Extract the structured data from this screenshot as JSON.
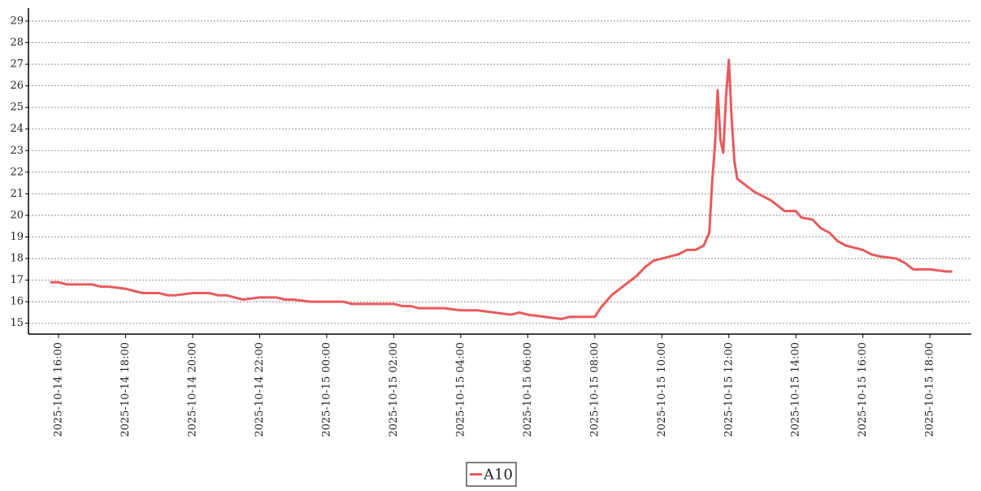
{
  "chart_data": {
    "type": "line",
    "x": [
      "2025-10-14 15:45",
      "2025-10-14 16:00",
      "2025-10-14 16:15",
      "2025-10-14 16:30",
      "2025-10-14 17:00",
      "2025-10-14 17:15",
      "2025-10-14 17:30",
      "2025-10-14 18:00",
      "2025-10-14 18:15",
      "2025-10-14 18:30",
      "2025-10-14 19:00",
      "2025-10-14 19:15",
      "2025-10-14 19:30",
      "2025-10-14 20:00",
      "2025-10-14 20:30",
      "2025-10-14 20:45",
      "2025-10-14 21:00",
      "2025-10-14 21:15",
      "2025-10-14 21:30",
      "2025-10-14 22:00",
      "2025-10-14 22:30",
      "2025-10-14 22:45",
      "2025-10-14 23:00",
      "2025-10-14 23:30",
      "2025-10-15 00:00",
      "2025-10-15 00:30",
      "2025-10-15 00:45",
      "2025-10-15 01:00",
      "2025-10-15 01:30",
      "2025-10-15 02:00",
      "2025-10-15 02:15",
      "2025-10-15 02:30",
      "2025-10-15 02:45",
      "2025-10-15 03:00",
      "2025-10-15 03:30",
      "2025-10-15 04:00",
      "2025-10-15 04:30",
      "2025-10-15 05:00",
      "2025-10-15 05:30",
      "2025-10-15 05:45",
      "2025-10-15 06:00",
      "2025-10-15 06:30",
      "2025-10-15 07:00",
      "2025-10-15 07:15",
      "2025-10-15 07:30",
      "2025-10-15 08:00",
      "2025-10-15 08:10",
      "2025-10-15 08:20",
      "2025-10-15 08:30",
      "2025-10-15 08:45",
      "2025-10-15 09:00",
      "2025-10-15 09:15",
      "2025-10-15 09:30",
      "2025-10-15 09:45",
      "2025-10-15 10:00",
      "2025-10-15 10:15",
      "2025-10-15 10:30",
      "2025-10-15 10:45",
      "2025-10-15 11:00",
      "2025-10-15 11:15",
      "2025-10-15 11:25",
      "2025-10-15 11:30",
      "2025-10-15 11:35",
      "2025-10-15 11:40",
      "2025-10-15 11:45",
      "2025-10-15 11:50",
      "2025-10-15 11:55",
      "2025-10-15 12:00",
      "2025-10-15 12:05",
      "2025-10-15 12:10",
      "2025-10-15 12:15",
      "2025-10-15 12:30",
      "2025-10-15 12:45",
      "2025-10-15 13:00",
      "2025-10-15 13:15",
      "2025-10-15 13:30",
      "2025-10-15 13:40",
      "2025-10-15 13:50",
      "2025-10-15 14:00",
      "2025-10-15 14:10",
      "2025-10-15 14:30",
      "2025-10-15 14:45",
      "2025-10-15 15:00",
      "2025-10-15 15:15",
      "2025-10-15 15:30",
      "2025-10-15 16:00",
      "2025-10-15 16:15",
      "2025-10-15 16:30",
      "2025-10-15 17:00",
      "2025-10-15 17:15",
      "2025-10-15 17:30",
      "2025-10-15 18:00",
      "2025-10-15 18:30",
      "2025-10-15 18:40"
    ],
    "series": [
      {
        "name": "A10",
        "color": "#e85a5a",
        "values": [
          16.9,
          16.9,
          16.8,
          16.8,
          16.8,
          16.7,
          16.7,
          16.6,
          16.5,
          16.4,
          16.4,
          16.3,
          16.3,
          16.4,
          16.4,
          16.3,
          16.3,
          16.2,
          16.1,
          16.2,
          16.2,
          16.1,
          16.1,
          16.0,
          16.0,
          16.0,
          15.9,
          15.9,
          15.9,
          15.9,
          15.8,
          15.8,
          15.7,
          15.7,
          15.7,
          15.6,
          15.6,
          15.5,
          15.4,
          15.5,
          15.4,
          15.3,
          15.2,
          15.3,
          15.3,
          15.3,
          15.7,
          16.0,
          16.3,
          16.6,
          16.9,
          17.2,
          17.6,
          17.9,
          18.0,
          18.1,
          18.2,
          18.4,
          18.4,
          18.6,
          19.2,
          21.5,
          23.2,
          25.8,
          23.5,
          22.9,
          25.5,
          27.2,
          24.5,
          22.5,
          21.7,
          21.4,
          21.1,
          20.9,
          20.7,
          20.4,
          20.2,
          20.2,
          20.2,
          19.9,
          19.8,
          19.4,
          19.2,
          18.8,
          18.6,
          18.4,
          18.2,
          18.1,
          18.0,
          17.8,
          17.5,
          17.5,
          17.4,
          17.4
        ]
      }
    ],
    "xlim": [
      "2025-10-14 15:06",
      "2025-10-15 19:14"
    ],
    "xticks": [
      "2025-10-14 16:00",
      "2025-10-14 18:00",
      "2025-10-14 20:00",
      "2025-10-14 22:00",
      "2025-10-15 00:00",
      "2025-10-15 02:00",
      "2025-10-15 04:00",
      "2025-10-15 06:00",
      "2025-10-15 08:00",
      "2025-10-15 10:00",
      "2025-10-15 12:00",
      "2025-10-15 14:00",
      "2025-10-15 16:00",
      "2025-10-15 18:00"
    ],
    "ylim": [
      14.5,
      29.6
    ],
    "yticks": [
      15,
      16,
      17,
      18,
      19,
      20,
      21,
      22,
      23,
      24,
      25,
      26,
      27,
      28,
      29
    ],
    "grid": true,
    "legend": "bottom"
  }
}
